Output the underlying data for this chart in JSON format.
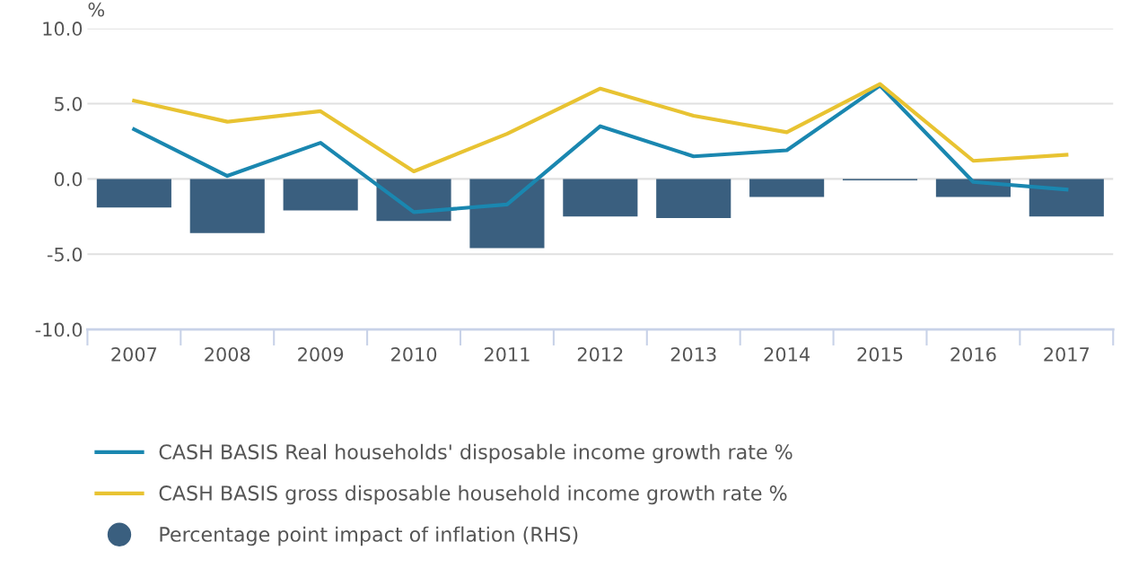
{
  "chart_data": {
    "type": "bar",
    "ylabel": "%",
    "categories": [
      "2007",
      "2008",
      "2009",
      "2010",
      "2011",
      "2012",
      "2013",
      "2014",
      "2015",
      "2016",
      "2017"
    ],
    "series": [
      {
        "name": "CASH BASIS Real households' disposable income growth rate %",
        "type": "line",
        "color": "#1a87b0",
        "values": [
          3.3,
          0.2,
          2.4,
          -2.2,
          -1.7,
          3.5,
          1.5,
          1.9,
          6.2,
          -0.2,
          -0.7
        ]
      },
      {
        "name": "CASH BASIS gross disposable household income growth rate %",
        "type": "line",
        "color": "#e8c332",
        "values": [
          5.2,
          3.8,
          4.5,
          0.5,
          3.0,
          6.0,
          4.2,
          3.1,
          6.3,
          1.2,
          1.6
        ]
      },
      {
        "name": "Percentage point impact of inflation (RHS)",
        "color": "#3a5f7f",
        "values": [
          -1.9,
          -3.6,
          -2.1,
          -2.8,
          -4.6,
          -2.5,
          -2.6,
          -1.2,
          -0.1,
          -1.2,
          -2.5
        ]
      }
    ],
    "ylim": [
      -10,
      10
    ],
    "yticks": [
      {
        "value": -10,
        "label": "-10.0"
      },
      {
        "value": -5,
        "label": "-5.0"
      },
      {
        "value": 0,
        "label": "0.0"
      },
      {
        "value": 5,
        "label": "5.0"
      },
      {
        "value": 10,
        "label": "10.0"
      }
    ],
    "grid": "y",
    "legend": "bottom"
  }
}
